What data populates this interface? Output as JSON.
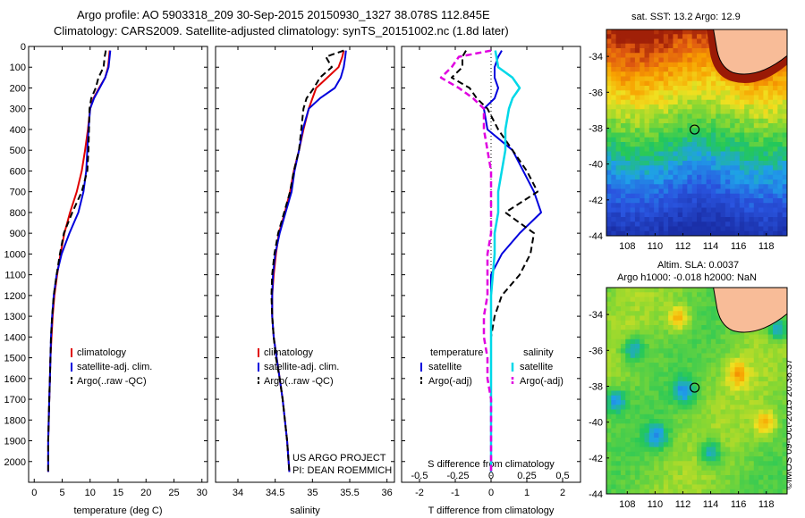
{
  "header": {
    "line1": "Argo profile: AO 5903318_209 30-Sep-2015 20150930_1327 38.078S 112.845E",
    "line2": "Climatology: CARS2009. Satellite-adjusted climatology: synTS_20151002.nc (1.8d later)"
  },
  "sst_panel": {
    "title": "sat. SST: 13.2 Argo: 12.9"
  },
  "sla_panel": {
    "line1": "Altim. SLA: 0.0037",
    "line2": "Argo h1000: -0.018 h2000: NaN"
  },
  "stamp": "©IMOS 09-Oct-2015 20:38:37",
  "colors": {
    "climatology": "#e00000",
    "satellite": "#0000dd",
    "argo": "#000000",
    "salinity_sat": "#00d8e8",
    "salinity_argo": "#e000e0",
    "land": "#f8bc98"
  },
  "chart_data": [
    {
      "type": "line",
      "xlabel": "temperature (deg C)",
      "xlim": [
        -1,
        31
      ],
      "xticks": [
        0,
        5,
        10,
        15,
        20,
        25,
        30
      ],
      "ylim": [
        0,
        2100
      ],
      "yticks": [
        0,
        100,
        200,
        300,
        400,
        500,
        600,
        700,
        800,
        900,
        1000,
        1100,
        1200,
        1300,
        1400,
        1500,
        1600,
        1700,
        1800,
        1900,
        2000
      ],
      "legend": [
        "climatology",
        "satellite-adj. clim.",
        "Argo(..raw -QC)"
      ],
      "series": [
        {
          "name": "climatology",
          "x": [
            13.5,
            13.4,
            13.2,
            12.7,
            11.6,
            10.6,
            10.0,
            9.6,
            9.1,
            8.5,
            7.6,
            6.4,
            5.4,
            4.7,
            4.1,
            3.6,
            3.3,
            3.1,
            2.9,
            2.8,
            2.7,
            2.6,
            2.5,
            2.5
          ],
          "y": [
            20,
            50,
            100,
            150,
            200,
            250,
            300,
            400,
            500,
            600,
            700,
            800,
            900,
            1000,
            1100,
            1200,
            1300,
            1400,
            1500,
            1600,
            1700,
            1800,
            1900,
            2050
          ]
        },
        {
          "name": "satellite-adj. clim.",
          "x": [
            13.6,
            13.5,
            13.3,
            12.7,
            11.7,
            10.7,
            10.0,
            9.7,
            9.5,
            9.3,
            8.8,
            7.9,
            6.3,
            4.9,
            4.0,
            3.5,
            3.2,
            3.0,
            2.9,
            2.8,
            2.7,
            2.6,
            2.5,
            2.5
          ],
          "y": [
            20,
            50,
            100,
            150,
            200,
            250,
            300,
            400,
            500,
            600,
            700,
            800,
            900,
            1000,
            1100,
            1200,
            1300,
            1400,
            1500,
            1600,
            1700,
            1800,
            1900,
            2050
          ]
        },
        {
          "name": "Argo(..raw -QC)",
          "x": [
            12.8,
            12.6,
            12.4,
            11.5,
            11.0,
            10.2,
            9.9,
            9.8,
            9.7,
            9.5,
            8.5,
            6.8,
            5.3,
            4.6,
            4.0,
            3.5,
            3.2,
            3.0,
            2.9,
            2.8,
            2.7,
            2.6,
            2.5,
            2.5
          ],
          "y": [
            20,
            50,
            100,
            150,
            200,
            250,
            300,
            400,
            500,
            600,
            700,
            800,
            900,
            1000,
            1100,
            1200,
            1300,
            1400,
            1500,
            1600,
            1700,
            1800,
            1900,
            2050
          ]
        }
      ]
    },
    {
      "type": "line",
      "xlabel": "salinity",
      "xlim": [
        33.7,
        36.1
      ],
      "xticks": [
        34,
        34.5,
        35,
        35.5,
        36
      ],
      "ylim": [
        0,
        2100
      ],
      "yticks": [
        0,
        100,
        200,
        300,
        400,
        500,
        600,
        700,
        800,
        900,
        1000,
        1100,
        1200,
        1300,
        1400,
        1500,
        1600,
        1700,
        1800,
        1900,
        2000
      ],
      "legend": [
        "climatology",
        "satellite-adj. clim.",
        "Argo(..raw -QC)"
      ],
      "annotations": [
        "US ARGO PROJECT",
        "PI: DEAN ROEMMICH"
      ],
      "series": [
        {
          "name": "climatology",
          "x": [
            35.42,
            35.4,
            35.35,
            35.2,
            35.05,
            35.0,
            34.95,
            34.88,
            34.82,
            34.75,
            34.7,
            34.63,
            34.55,
            34.51,
            34.48,
            34.46,
            34.46,
            34.48,
            34.52,
            34.56,
            34.6,
            34.63,
            34.66,
            34.69
          ],
          "y": [
            20,
            50,
            100,
            150,
            200,
            250,
            300,
            400,
            500,
            600,
            700,
            800,
            900,
            1000,
            1100,
            1200,
            1300,
            1400,
            1500,
            1600,
            1700,
            1800,
            1900,
            2050
          ]
        },
        {
          "name": "satellite-adj. clim.",
          "x": [
            35.45,
            35.44,
            35.42,
            35.38,
            35.3,
            35.1,
            34.95,
            34.87,
            34.82,
            34.76,
            34.72,
            34.64,
            34.56,
            34.5,
            34.47,
            34.46,
            34.46,
            34.48,
            34.52,
            34.56,
            34.6,
            34.63,
            34.66,
            34.69
          ],
          "y": [
            20,
            50,
            100,
            150,
            200,
            250,
            300,
            400,
            500,
            600,
            700,
            800,
            900,
            1000,
            1100,
            1200,
            1300,
            1400,
            1500,
            1600,
            1700,
            1800,
            1900,
            2050
          ]
        },
        {
          "name": "Argo(..raw -QC)",
          "x": [
            35.42,
            35.18,
            35.26,
            35.1,
            35.02,
            34.92,
            34.88,
            34.85,
            34.82,
            34.75,
            34.7,
            34.62,
            34.54,
            34.49,
            34.46,
            34.45,
            34.46,
            34.48,
            34.51,
            34.56,
            34.6,
            34.63,
            34.66,
            34.69
          ],
          "y": [
            20,
            50,
            100,
            150,
            200,
            250,
            300,
            400,
            500,
            600,
            700,
            800,
            900,
            1000,
            1100,
            1200,
            1300,
            1400,
            1500,
            1600,
            1700,
            1800,
            1900,
            2050
          ]
        }
      ]
    },
    {
      "type": "line",
      "xlabel": "T difference from climatology",
      "xlabel2": "S difference from climatology",
      "xlim": [
        -2.5,
        2.5
      ],
      "xticks": [
        -2,
        -1,
        0,
        1,
        2
      ],
      "xticks_salinity": [
        "-0.5",
        "-0.25",
        "0",
        "0.25",
        "0.5"
      ],
      "ylim": [
        0,
        2100
      ],
      "yticks": [
        0,
        100,
        200,
        300,
        400,
        500,
        600,
        700,
        800,
        900,
        1000,
        1100,
        1200,
        1300,
        1400,
        1500,
        1600,
        1700,
        1800,
        1900,
        2000
      ],
      "legend_temperature_title": "temperature",
      "legend_temperature": [
        "satellite",
        "Argo(-adj)"
      ],
      "legend_salinity_title": "salinity",
      "legend_salinity": [
        "satellite",
        "Argo(-adj)"
      ],
      "series": [
        {
          "name": "temperature satellite",
          "x": [
            0.3,
            0.2,
            0.1,
            0.1,
            0.2,
            0.1,
            -0.2,
            -0.1,
            0.6,
            0.9,
            1.2,
            1.4,
            0.8,
            0.3,
            0.0,
            0.0,
            0.0,
            0.0,
            0.0,
            0.0,
            0.0,
            0.0,
            0.0,
            0.0
          ],
          "y": [
            20,
            50,
            100,
            150,
            200,
            250,
            300,
            400,
            500,
            600,
            700,
            800,
            900,
            1000,
            1100,
            1200,
            1300,
            1400,
            1500,
            1600,
            1700,
            1800,
            1900,
            2050
          ]
        },
        {
          "name": "temperature Argo(-adj)",
          "x": [
            -0.7,
            -0.8,
            -0.8,
            -1.1,
            -0.6,
            -0.4,
            -0.1,
            0.2,
            0.6,
            1.0,
            1.3,
            0.4,
            1.2,
            1.1,
            0.8,
            0.3,
            0.1,
            0.0,
            0.0,
            0.0,
            0.0,
            0.0,
            0.0,
            0.0
          ],
          "y": [
            20,
            50,
            100,
            150,
            200,
            250,
            300,
            400,
            500,
            600,
            700,
            800,
            900,
            1000,
            1100,
            1200,
            1300,
            1400,
            1500,
            1600,
            1700,
            1800,
            1900,
            2050
          ]
        },
        {
          "name": "salinity satellite",
          "x": [
            0.12,
            0.15,
            0.2,
            0.6,
            0.8,
            0.6,
            0.5,
            0.4,
            0.4,
            0.3,
            0.2,
            0.2,
            0.1,
            0.1,
            0.05,
            0.0,
            0.0,
            0.0,
            0.0,
            0.0,
            0.0,
            0.0,
            0.0,
            0.0
          ],
          "y": [
            20,
            50,
            100,
            150,
            200,
            250,
            300,
            400,
            500,
            600,
            700,
            800,
            900,
            1000,
            1100,
            1200,
            1300,
            1400,
            1500,
            1600,
            1700,
            1800,
            1900,
            2050
          ]
        },
        {
          "name": "salinity Argo(-adj)",
          "x": [
            0.0,
            -0.9,
            -1.1,
            -1.4,
            -0.9,
            -0.5,
            -0.2,
            -0.2,
            -0.1,
            0.0,
            0.0,
            0.0,
            0.0,
            -0.1,
            -0.1,
            -0.1,
            -0.2,
            -0.2,
            -0.1,
            -0.1,
            0.0,
            0.0,
            0.0,
            0.0
          ],
          "y": [
            20,
            50,
            100,
            150,
            200,
            250,
            300,
            400,
            500,
            600,
            700,
            800,
            900,
            1000,
            1100,
            1200,
            1300,
            1400,
            1500,
            1600,
            1700,
            1800,
            1900,
            2050
          ]
        }
      ]
    },
    {
      "type": "heatmap",
      "title": "sat. SST: 13.2 Argo: 12.9",
      "xlim": [
        106.5,
        119.5
      ],
      "ylim": [
        -44,
        -32.5
      ],
      "xticks": [
        108,
        110,
        112,
        114,
        116,
        118
      ],
      "yticks": [
        -34,
        -36,
        -38,
        -40,
        -42,
        -44
      ],
      "argo_position": {
        "lon": 112.845,
        "lat": -38.078
      }
    },
    {
      "type": "heatmap",
      "title": "Altim. SLA: 0.0037",
      "xlim": [
        106.5,
        119.5
      ],
      "ylim": [
        -44,
        -32.5
      ],
      "xticks": [
        108,
        110,
        112,
        114,
        116,
        118
      ],
      "yticks": [
        -34,
        -36,
        -38,
        -40,
        -42,
        -44
      ],
      "argo_position": {
        "lon": 112.845,
        "lat": -38.078
      }
    }
  ]
}
